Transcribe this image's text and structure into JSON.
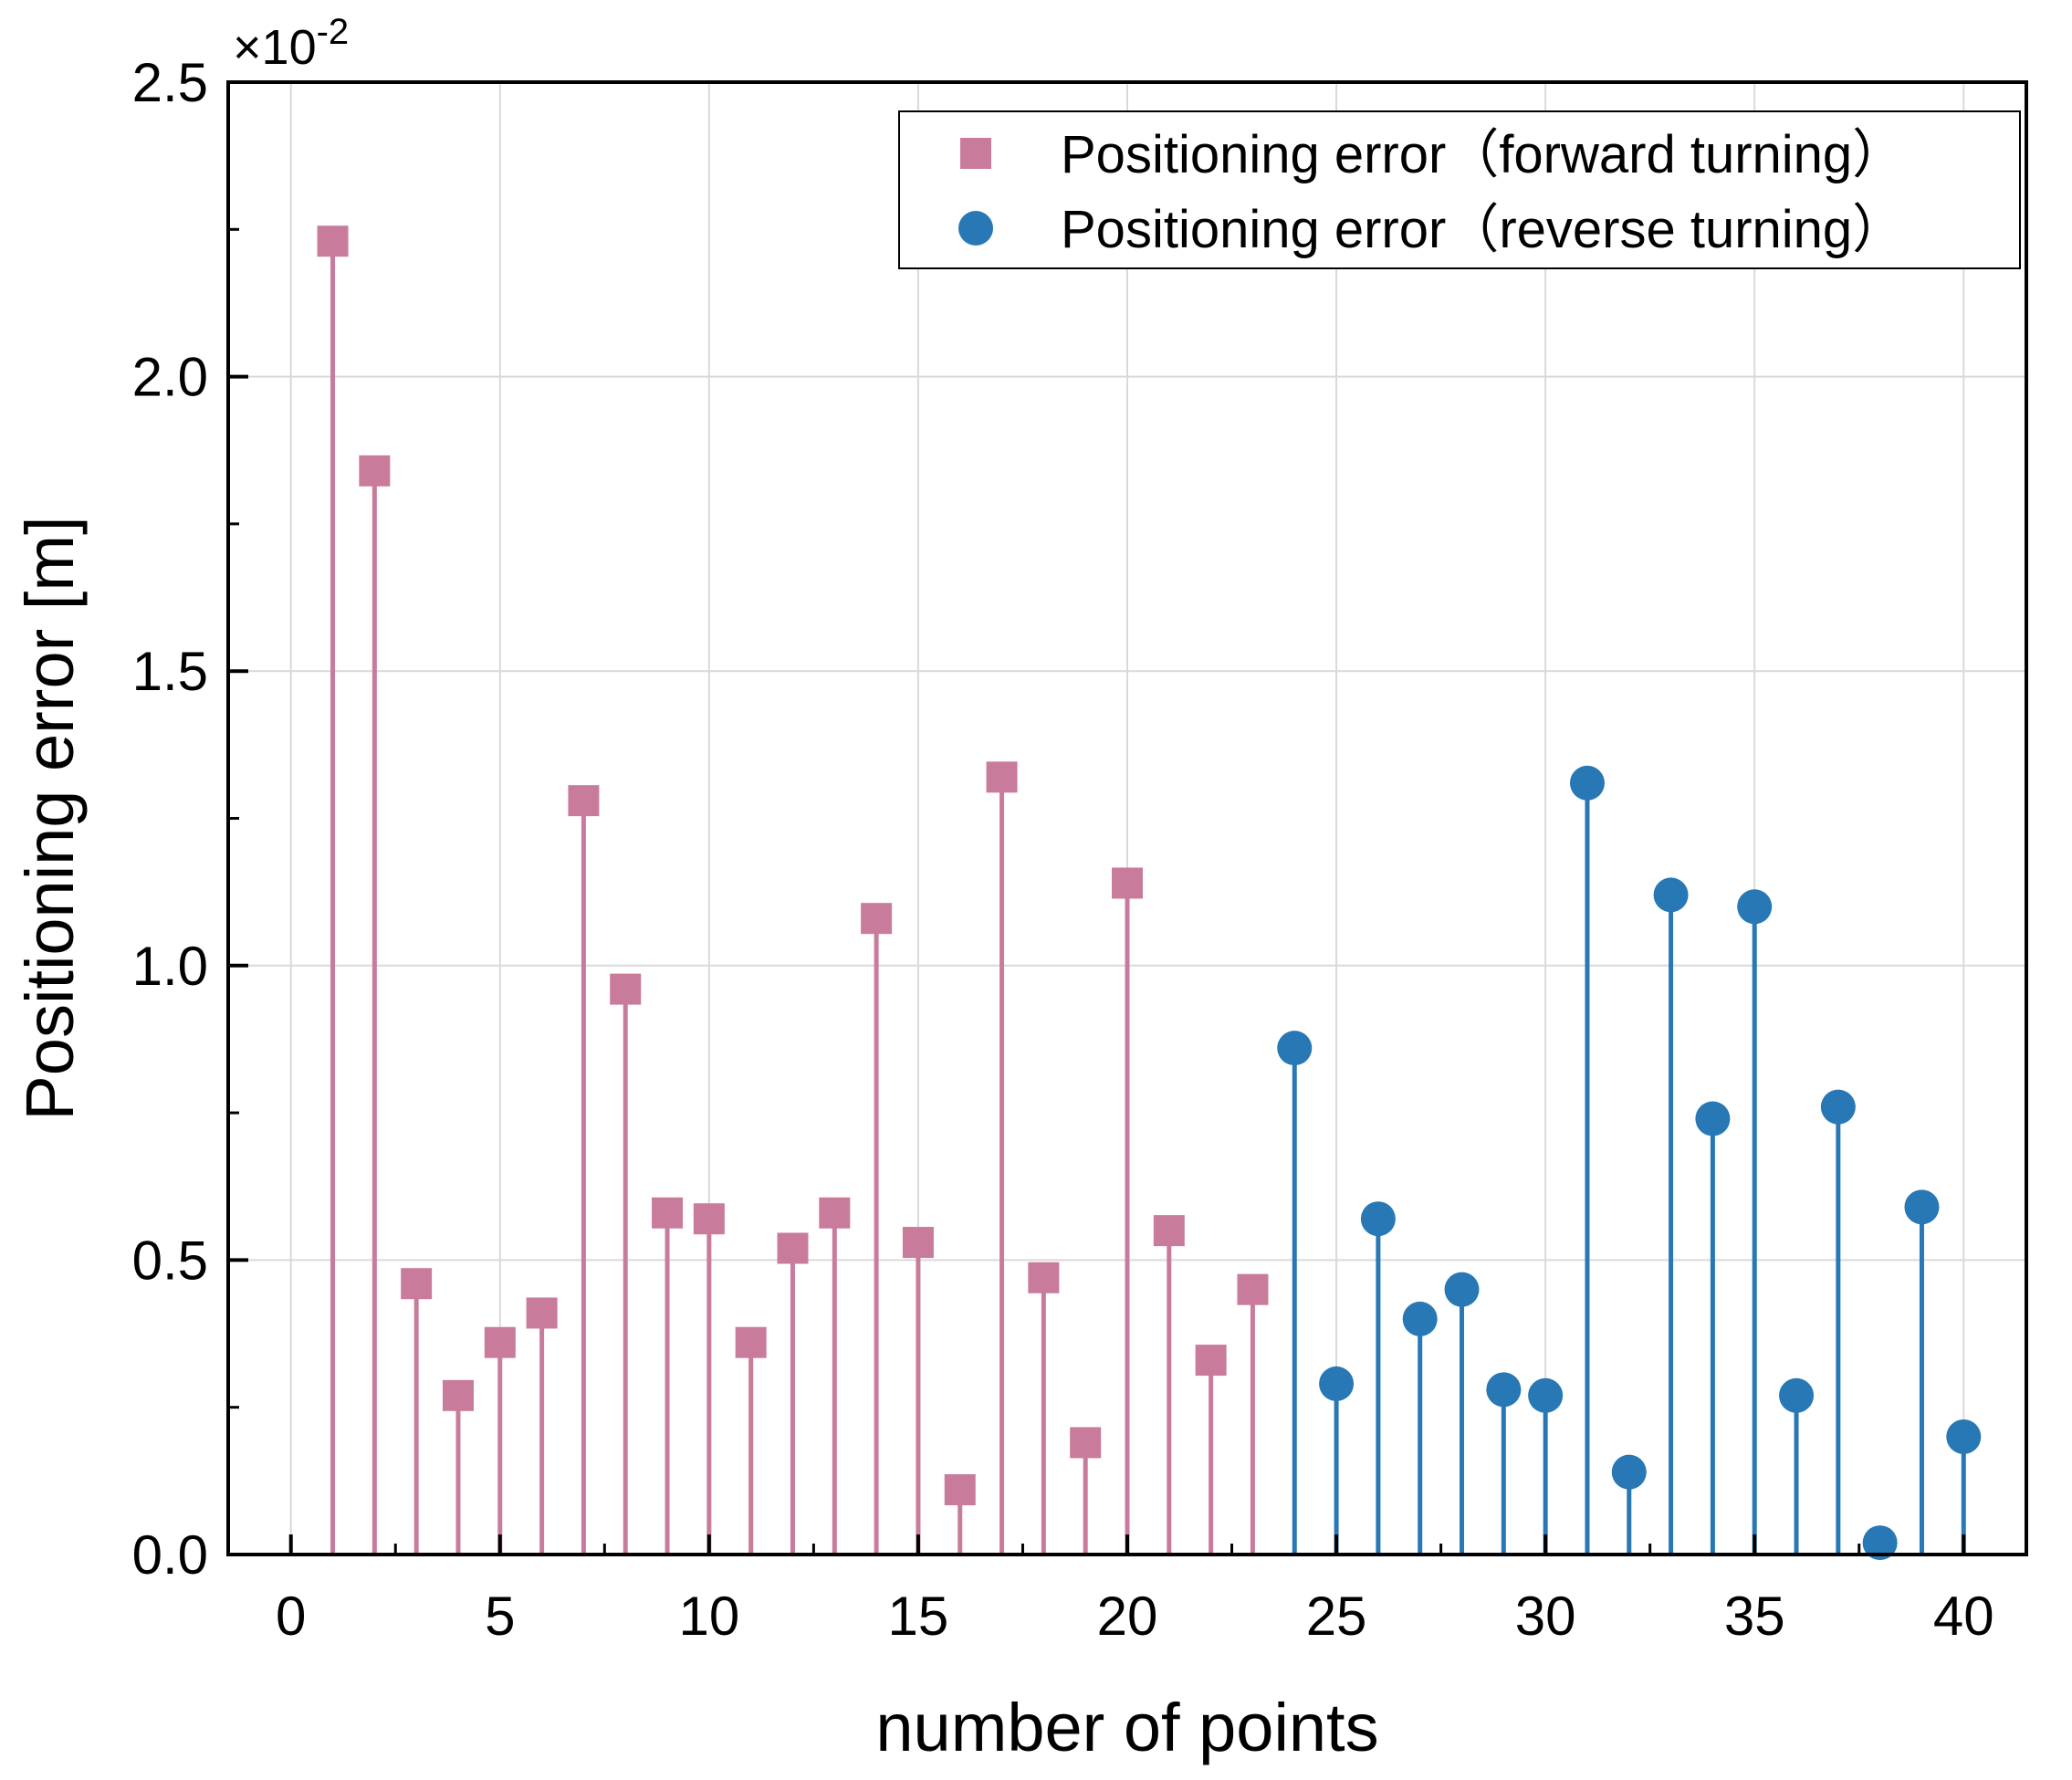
{
  "chart_data": {
    "type": "scatter",
    "style": "stem",
    "xlabel": "number of points",
    "ylabel": "Positioning error [m]",
    "y_multiplier": {
      "base": "×10",
      "exponent": "-2"
    },
    "xlim": [
      -1.5,
      41.5
    ],
    "ylim": [
      0,
      2.5
    ],
    "xticks": [
      0,
      5,
      10,
      15,
      20,
      25,
      30,
      35,
      40
    ],
    "xtick_labels": [
      "0",
      "5",
      "10",
      "15",
      "20",
      "25",
      "30",
      "35",
      "40"
    ],
    "yticks": [
      0,
      0.5,
      1.0,
      1.5,
      2.0,
      2.5
    ],
    "ytick_labels": [
      "0.0",
      "0.5",
      "1.0",
      "1.5",
      "2.0",
      "2.5"
    ],
    "grid": true,
    "legend_position": "top-right",
    "series": [
      {
        "name": "Positioning error（forward turning）",
        "marker": "square",
        "color": "#C97B9C",
        "x": [
          1,
          2,
          3,
          4,
          5,
          6,
          7,
          8,
          9,
          10,
          11,
          12,
          13,
          14,
          15,
          16,
          17,
          18,
          19,
          20,
          21,
          22,
          23
        ],
        "values": [
          2.23,
          1.84,
          0.46,
          0.27,
          0.36,
          0.41,
          1.28,
          0.96,
          0.58,
          0.57,
          0.36,
          0.52,
          0.58,
          1.08,
          0.53,
          0.11,
          1.32,
          0.47,
          0.19,
          1.14,
          0.55,
          0.33,
          0.45
        ]
      },
      {
        "name": "Positioning error（reverse turning）",
        "marker": "circle",
        "color": "#2878B5",
        "x": [
          24,
          25,
          26,
          27,
          28,
          29,
          30,
          31,
          32,
          33,
          34,
          35,
          36,
          37,
          38,
          39,
          40
        ],
        "values": [
          0.86,
          0.29,
          0.57,
          0.4,
          0.45,
          0.28,
          0.27,
          1.31,
          0.14,
          1.12,
          0.74,
          1.1,
          0.27,
          0.76,
          0.02,
          0.59,
          0.2
        ]
      }
    ]
  }
}
